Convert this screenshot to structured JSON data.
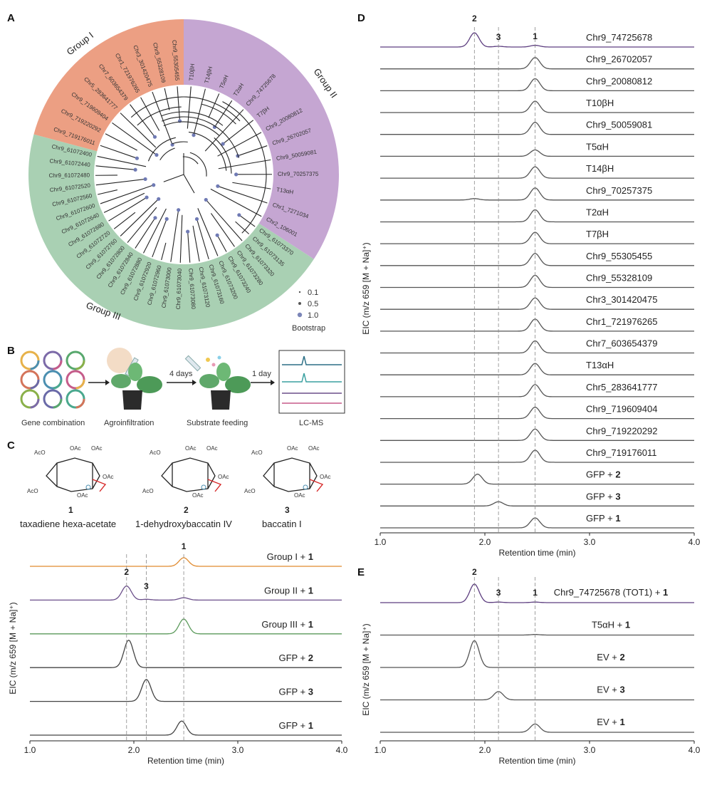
{
  "panels": {
    "A": {
      "letter": "A",
      "groups": [
        {
          "name": "Group I",
          "color": "#ec9f83"
        },
        {
          "name": "Group II",
          "color": "#c5a6d2"
        },
        {
          "name": "Group III",
          "color": "#a9d0b3"
        }
      ],
      "leaf_labels": {
        "group1": [
          "Chr9_719176011",
          "Chr9_719220292",
          "Chr9_719609404",
          "Chr5_283641777",
          "Chr7_603654379",
          "Chr1_721976265",
          "Chr3_301420475",
          "Chr9_55328109",
          "Chr9_55305455"
        ],
        "group2": [
          "T10βH",
          "T14βH",
          "T5αH",
          "T2αH",
          "Chr9_74725678",
          "T7βH",
          "Chr9_20080812",
          "Chr9_26702057",
          "Chr9_50059081",
          "Chr9_70257375",
          "T13αH",
          "Chr1_7271034",
          "Chr2_106001"
        ],
        "group3": [
          "Chr9_61073370",
          "Chr9_61073135",
          "Chr9_61073320",
          "Chr9_61073280",
          "Chr9_61073240",
          "Chr9_61073200",
          "Chr9_61073160",
          "Chr9_61073120",
          "Chr9_61073080",
          "Chr9_61073040",
          "Chr9_61073000",
          "Chr9_61072960",
          "Chr9_61072920",
          "Chr9_61072880",
          "Chr9_61072840",
          "Chr9_61072800",
          "Chr9_61072760",
          "Chr9_61072720",
          "Chr9_61072680",
          "Chr9_61072640",
          "Chr9_61072600",
          "Chr9_61072560",
          "Chr9_61072520",
          "Chr9_61072480",
          "Chr9_61072440",
          "Chr9_61072400"
        ]
      },
      "highlight_leaf": "Chr9_74725678",
      "bootstrap": {
        "title": "Bootstrap",
        "values": [
          "0.1",
          "0.5",
          "1.0"
        ]
      }
    },
    "B": {
      "letter": "B",
      "steps": [
        "Gene combination",
        "Agroinfiltration",
        "Substrate feeding",
        "LC-MS"
      ],
      "arrows": [
        "4 days",
        "1 day"
      ]
    },
    "C": {
      "letter": "C",
      "compounds": [
        {
          "number": "1",
          "name": "taxadiene hexa-acetate"
        },
        {
          "number": "2",
          "name": "1-dehydroxybaccatin IV"
        },
        {
          "number": "3",
          "name": "baccatin I"
        }
      ],
      "group_ac": "OAc",
      "group_aco": "AcO",
      "chart": {
        "ylabel": "EIC (m/z 659 [M + Na]⁺)",
        "xlabel": "Retention time (min)",
        "xticks": [
          "1.0",
          "2.0",
          "3.0",
          "4.0"
        ],
        "traces": [
          {
            "label": "Group I + ",
            "bold": "1",
            "color": "#e08a2e"
          },
          {
            "label": "Group II + ",
            "bold": "1",
            "color": "#6b4f8a"
          },
          {
            "label": "Group III + ",
            "bold": "1",
            "color": "#5b9a5b"
          },
          {
            "label": "GFP + ",
            "bold": "2",
            "color": "#444444"
          },
          {
            "label": "GFP + ",
            "bold": "3",
            "color": "#444444"
          },
          {
            "label": "GFP + ",
            "bold": "1",
            "color": "#444444"
          }
        ],
        "peak_labels": [
          "2",
          "3",
          "1"
        ]
      }
    },
    "D": {
      "letter": "D",
      "chart": {
        "ylabel": "EIC (m/z 659 [M + Na]⁺)",
        "xlabel": "Retention time (min)",
        "xticks": [
          "1.0",
          "2.0",
          "3.0",
          "4.0"
        ],
        "peak_labels": [
          "2",
          "3",
          "1"
        ],
        "traces": [
          {
            "label": "Chr9_74725678",
            "bold": ""
          },
          {
            "label": "Chr9_26702057",
            "bold": ""
          },
          {
            "label": "Chr9_20080812",
            "bold": ""
          },
          {
            "label": "T10βH",
            "bold": ""
          },
          {
            "label": "Chr9_50059081",
            "bold": ""
          },
          {
            "label": "T5αH",
            "bold": ""
          },
          {
            "label": "T14βH",
            "bold": ""
          },
          {
            "label": "Chr9_70257375",
            "bold": ""
          },
          {
            "label": "T2αH",
            "bold": ""
          },
          {
            "label": "T7βH",
            "bold": ""
          },
          {
            "label": "Chr9_55305455",
            "bold": ""
          },
          {
            "label": "Chr9_55328109",
            "bold": ""
          },
          {
            "label": "Chr3_301420475",
            "bold": ""
          },
          {
            "label": "Chr1_721976265",
            "bold": ""
          },
          {
            "label": "Chr7_603654379",
            "bold": ""
          },
          {
            "label": "T13αH",
            "bold": ""
          },
          {
            "label": "Chr5_283641777",
            "bold": ""
          },
          {
            "label": "Chr9_719609404",
            "bold": ""
          },
          {
            "label": "Chr9_719220292",
            "bold": ""
          },
          {
            "label": "Chr9_719176011",
            "bold": ""
          },
          {
            "label": "GFP + ",
            "bold": "2"
          },
          {
            "label": "GFP + ",
            "bold": "3"
          },
          {
            "label": "GFP + ",
            "bold": "1"
          }
        ]
      }
    },
    "E": {
      "letter": "E",
      "chart": {
        "ylabel": "EIC (m/z 659 [M + Na]⁺)",
        "xlabel": "Retention time (min)",
        "xticks": [
          "1.0",
          "2.0",
          "3.0",
          "4.0"
        ],
        "peak_labels": [
          "2",
          "3",
          "1"
        ],
        "traces": [
          {
            "label": "Chr9_74725678 (TOT1) + ",
            "bold": "1"
          },
          {
            "label": "T5αH + ",
            "bold": "1"
          },
          {
            "label": "EV + ",
            "bold": "2"
          },
          {
            "label": "EV + ",
            "bold": "3"
          },
          {
            "label": "EV + ",
            "bold": "1"
          }
        ]
      }
    }
  },
  "chart_data": [
    {
      "type": "line",
      "panel": "C",
      "title": "",
      "xlabel": "Retention time (min)",
      "ylabel": "EIC (m/z 659 [M + Na]+)",
      "xlim": [
        1.0,
        4.0
      ],
      "series": [
        {
          "name": "Group I + 1",
          "peaks": [
            {
              "rt": 2.48,
              "height": 0.55
            }
          ]
        },
        {
          "name": "Group II + 1",
          "peaks": [
            {
              "rt": 1.93,
              "height": 0.9
            },
            {
              "rt": 2.12,
              "height": 0.05
            },
            {
              "rt": 2.48,
              "height": 0.15
            }
          ]
        },
        {
          "name": "Group III + 1",
          "peaks": [
            {
              "rt": 2.48,
              "height": 0.95
            }
          ]
        },
        {
          "name": "GFP + 2",
          "peaks": [
            {
              "rt": 1.95,
              "height": 1.75
            }
          ]
        },
        {
          "name": "GFP + 3",
          "peaks": [
            {
              "rt": 2.12,
              "height": 1.4
            }
          ]
        },
        {
          "name": "GFP + 1",
          "peaks": [
            {
              "rt": 2.46,
              "height": 0.9
            }
          ]
        }
      ]
    },
    {
      "type": "line",
      "panel": "D",
      "title": "",
      "xlabel": "Retention time (min)",
      "ylabel": "EIC (m/z 659 [M + Na]+)",
      "xlim": [
        1.0,
        4.0
      ],
      "series": [
        {
          "name": "Chr9_74725678",
          "peaks": [
            {
              "rt": 1.9,
              "height": 1.0
            },
            {
              "rt": 2.13,
              "height": 0.05
            },
            {
              "rt": 2.48,
              "height": 0.12
            }
          ]
        },
        {
          "name": "Chr9_26702057",
          "peaks": [
            {
              "rt": 2.48,
              "height": 0.8
            }
          ]
        },
        {
          "name": "Chr9_20080812",
          "peaks": [
            {
              "rt": 2.48,
              "height": 0.85
            }
          ]
        },
        {
          "name": "T10βH",
          "peaks": [
            {
              "rt": 2.48,
              "height": 0.8
            }
          ]
        },
        {
          "name": "Chr9_50059081",
          "peaks": [
            {
              "rt": 2.48,
              "height": 0.85
            }
          ]
        },
        {
          "name": "T5αH",
          "peaks": [
            {
              "rt": 2.48,
              "height": 0.45
            }
          ]
        },
        {
          "name": "T14βH",
          "peaks": [
            {
              "rt": 2.48,
              "height": 0.8
            }
          ]
        },
        {
          "name": "Chr9_70257375",
          "peaks": [
            {
              "rt": 1.9,
              "height": 0.1
            },
            {
              "rt": 2.48,
              "height": 0.85
            }
          ]
        },
        {
          "name": "T2αH",
          "peaks": [
            {
              "rt": 2.48,
              "height": 0.85
            }
          ]
        },
        {
          "name": "T7βH",
          "peaks": [
            {
              "rt": 2.48,
              "height": 0.8
            }
          ]
        },
        {
          "name": "Chr9_55305455",
          "peaks": [
            {
              "rt": 2.48,
              "height": 0.85
            }
          ]
        },
        {
          "name": "Chr9_55328109",
          "peaks": [
            {
              "rt": 2.48,
              "height": 0.85
            }
          ]
        },
        {
          "name": "Chr3_301420475",
          "peaks": [
            {
              "rt": 2.48,
              "height": 0.8
            }
          ]
        },
        {
          "name": "Chr1_721976265",
          "peaks": [
            {
              "rt": 2.48,
              "height": 0.85
            }
          ]
        },
        {
          "name": "Chr7_603654379",
          "peaks": [
            {
              "rt": 2.48,
              "height": 0.85
            }
          ]
        },
        {
          "name": "T13αH",
          "peaks": [
            {
              "rt": 2.48,
              "height": 0.8
            }
          ]
        },
        {
          "name": "Chr5_283641777",
          "peaks": [
            {
              "rt": 2.48,
              "height": 0.85
            }
          ]
        },
        {
          "name": "Chr9_719609404",
          "peaks": [
            {
              "rt": 2.48,
              "height": 0.8
            }
          ]
        },
        {
          "name": "Chr9_719220292",
          "peaks": [
            {
              "rt": 2.48,
              "height": 0.8
            }
          ]
        },
        {
          "name": "Chr9_719176011",
          "peaks": [
            {
              "rt": 2.48,
              "height": 0.85
            }
          ]
        },
        {
          "name": "GFP + 2",
          "peaks": [
            {
              "rt": 1.93,
              "height": 0.7
            }
          ]
        },
        {
          "name": "GFP + 3",
          "peaks": [
            {
              "rt": 2.13,
              "height": 0.3
            }
          ]
        },
        {
          "name": "GFP + 1",
          "peaks": [
            {
              "rt": 2.48,
              "height": 0.7
            }
          ]
        }
      ]
    },
    {
      "type": "line",
      "panel": "E",
      "title": "",
      "xlabel": "Retention time (min)",
      "ylabel": "EIC (m/z 659 [M + Na]+)",
      "xlim": [
        1.0,
        4.0
      ],
      "series": [
        {
          "name": "Chr9_74725678 (TOT1) + 1",
          "peaks": [
            {
              "rt": 1.9,
              "height": 1.0
            },
            {
              "rt": 2.13,
              "height": 0.03
            },
            {
              "rt": 2.48,
              "height": 0.03
            }
          ]
        },
        {
          "name": "T5αH + 1",
          "peaks": [
            {
              "rt": 2.48,
              "height": 0.03
            }
          ]
        },
        {
          "name": "EV + 2",
          "peaks": [
            {
              "rt": 1.9,
              "height": 1.45
            }
          ]
        },
        {
          "name": "EV + 3",
          "peaks": [
            {
              "rt": 2.13,
              "height": 0.45
            }
          ]
        },
        {
          "name": "EV + 1",
          "peaks": [
            {
              "rt": 2.48,
              "height": 0.45
            }
          ]
        }
      ]
    }
  ]
}
